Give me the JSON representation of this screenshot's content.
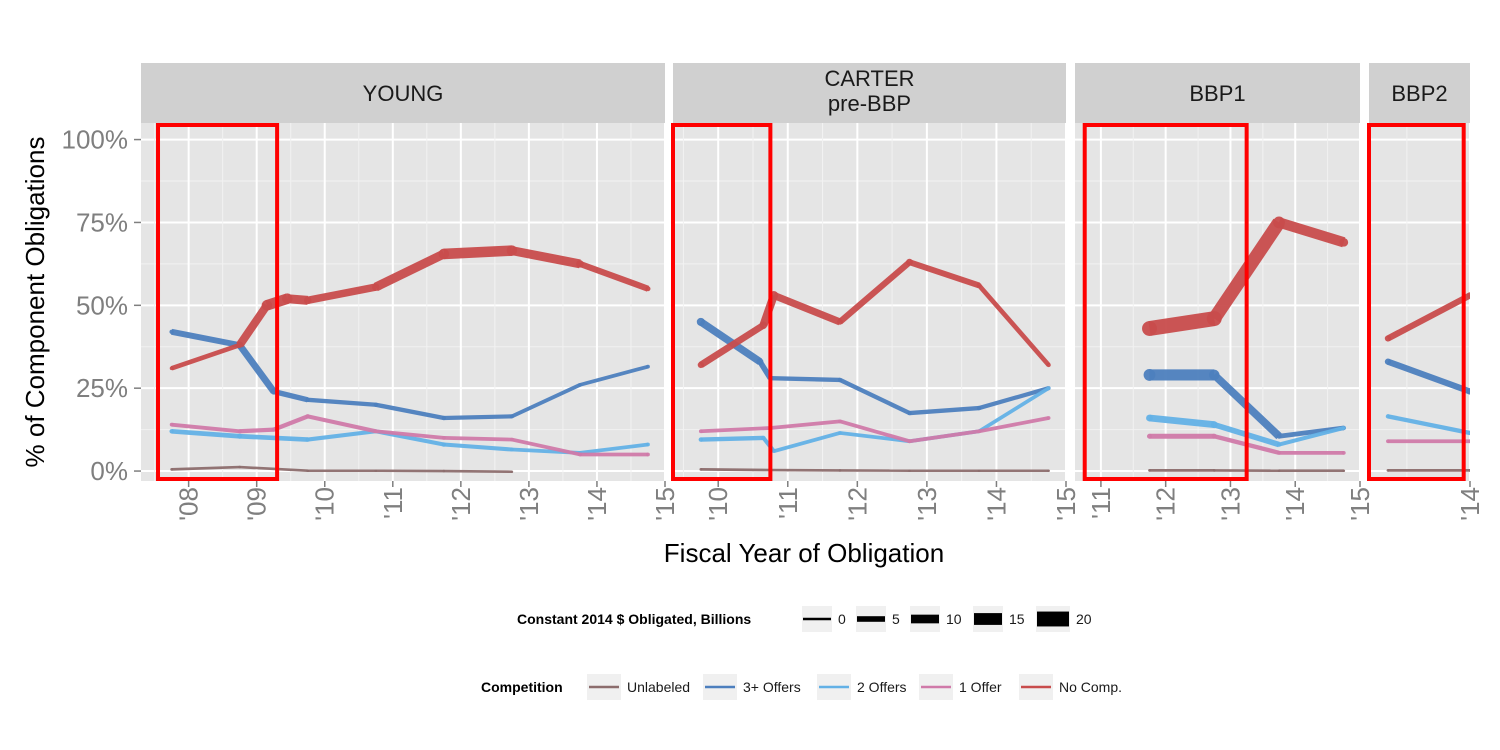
{
  "chart_data": {
    "type": "line",
    "xlabel": "Fiscal Year of Obligation",
    "ylabel": "% of Component Obligations",
    "ylim": [
      -0.03,
      1.05
    ],
    "y_ticks": [
      {
        "value": 0,
        "label": "0%"
      },
      {
        "value": 0.25,
        "label": "25%"
      },
      {
        "value": 0.5,
        "label": "50%"
      },
      {
        "value": 0.75,
        "label": "75%"
      },
      {
        "value": 1.0,
        "label": "100%"
      }
    ],
    "panels": [
      {
        "title_lines": [
          "YOUNG"
        ],
        "xlim": [
          2007.3,
          2015.0
        ],
        "x_ticks": [
          {
            "value": 2008,
            "label": "'08"
          },
          {
            "value": 2009,
            "label": "'09"
          },
          {
            "value": 2010,
            "label": "'10"
          },
          {
            "value": 2011,
            "label": "'11"
          },
          {
            "value": 2012,
            "label": "'12"
          },
          {
            "value": 2013,
            "label": "'13"
          },
          {
            "value": 2014,
            "label": "'14"
          },
          {
            "value": 2015,
            "label": "'15"
          }
        ],
        "highlight_x": [
          2007.55,
          2009.3
        ],
        "series": [
          {
            "name": "Unlabeled",
            "x": [
              2007.75,
              2008.75,
              2009.75,
              2010.75,
              2011.75,
              2012.75
            ],
            "y": [
              0.005,
              0.012,
              0.001,
              0.001,
              0.0,
              -0.002
            ],
            "w": [
              0.3,
              0.4,
              0.1,
              0.1,
              0.1,
              0.1
            ]
          },
          {
            "name": "3+ Offers",
            "x": [
              2007.75,
              2008.75,
              2009.25,
              2009.75,
              2010.75,
              2011.75,
              2012.75,
              2013.75,
              2014.75
            ],
            "y": [
              0.42,
              0.38,
              0.24,
              0.215,
              0.2,
              0.16,
              0.165,
              0.26,
              0.315
            ],
            "w": [
              3,
              8,
              6,
              3,
              3,
              3,
              2.5,
              2,
              2
            ]
          },
          {
            "name": "2 Offers",
            "x": [
              2007.75,
              2008.75,
              2009.75,
              2010.75,
              2011.75,
              2012.75,
              2013.75,
              2014.75
            ],
            "y": [
              0.12,
              0.105,
              0.095,
              0.12,
              0.08,
              0.065,
              0.055,
              0.08
            ],
            "w": [
              3,
              4,
              3,
              2,
              3,
              2,
              2,
              2
            ]
          },
          {
            "name": "1 Offer",
            "x": [
              2007.75,
              2008.75,
              2009.25,
              2009.75,
              2010.75,
              2011.75,
              2012.75,
              2013.75,
              2014.75
            ],
            "y": [
              0.14,
              0.12,
              0.125,
              0.165,
              0.12,
              0.1,
              0.095,
              0.05,
              0.05
            ],
            "w": [
              2,
              2.5,
              3,
              3,
              2,
              2,
              2,
              2,
              2
            ]
          },
          {
            "name": "No Comp.",
            "x": [
              2007.75,
              2008.75,
              2009.15,
              2009.45,
              2009.75,
              2010.75,
              2011.75,
              2012.75,
              2013.75,
              2014.75
            ],
            "y": [
              0.31,
              0.38,
              0.5,
              0.52,
              0.515,
              0.555,
              0.655,
              0.665,
              0.625,
              0.55
            ],
            "w": [
              2,
              5,
              13,
              13,
              8,
              8,
              13,
              13,
              8,
              4
            ]
          }
        ]
      },
      {
        "title_lines": [
          "CARTER",
          "pre-BBP"
        ],
        "xlim": [
          2009.35,
          2015.0
        ],
        "x_ticks": [
          {
            "value": 2010,
            "label": "'10"
          },
          {
            "value": 2011,
            "label": "'11"
          },
          {
            "value": 2012,
            "label": "'12"
          },
          {
            "value": 2013,
            "label": "'13"
          },
          {
            "value": 2014,
            "label": "'14"
          },
          {
            "value": 2015,
            "label": "'15"
          }
        ],
        "highlight_x": [
          2009.35,
          2010.75
        ],
        "series": [
          {
            "name": "Unlabeled",
            "x": [
              2009.75,
              2010.75,
              2011.75,
              2012.75,
              2013.75,
              2014.75
            ],
            "y": [
              0.005,
              0.003,
              0.002,
              0.001,
              0.001,
              0.001
            ],
            "w": [
              0.3,
              0.3,
              0.2,
              0.1,
              0.1,
              0.1
            ]
          },
          {
            "name": "3+ Offers",
            "x": [
              2009.75,
              2010.6,
              2010.75,
              2011.75,
              2012.75,
              2013.75,
              2014.75
            ],
            "y": [
              0.45,
              0.33,
              0.28,
              0.275,
              0.175,
              0.19,
              0.25
            ],
            "w": [
              9,
              7,
              3,
              3,
              3,
              3,
              2.5
            ]
          },
          {
            "name": "2 Offers",
            "x": [
              2009.75,
              2010.65,
              2010.8,
              2011.75,
              2012.75,
              2013.75,
              2014.75
            ],
            "y": [
              0.095,
              0.1,
              0.06,
              0.115,
              0.09,
              0.12,
              0.25
            ],
            "w": [
              3,
              3,
              2,
              2,
              2,
              2,
              2
            ]
          },
          {
            "name": "1 Offer",
            "x": [
              2009.75,
              2010.75,
              2011.75,
              2012.75,
              2013.75,
              2014.75
            ],
            "y": [
              0.12,
              0.13,
              0.15,
              0.09,
              0.12,
              0.16
            ],
            "w": [
              2,
              2,
              2,
              2,
              2,
              2
            ]
          },
          {
            "name": "No Comp.",
            "x": [
              2009.75,
              2010.65,
              2010.8,
              2011.75,
              2012.75,
              2013.75,
              2014.75
            ],
            "y": [
              0.32,
              0.44,
              0.53,
              0.45,
              0.63,
              0.56,
              0.32
            ],
            "w": [
              6,
              8,
              10,
              5,
              7,
              4,
              3
            ]
          }
        ]
      },
      {
        "title_lines": [
          "BBP1"
        ],
        "xlim": [
          2010.6,
          2015.0
        ],
        "x_ticks": [
          {
            "value": 2011,
            "label": "'11"
          },
          {
            "value": 2012,
            "label": "'12"
          },
          {
            "value": 2013,
            "label": "'13"
          },
          {
            "value": 2014,
            "label": "'14"
          },
          {
            "value": 2015,
            "label": "'15"
          }
        ],
        "highlight_x": [
          2010.75,
          2013.25
        ],
        "series": [
          {
            "name": "Unlabeled",
            "x": [
              2011.75,
              2012.75,
              2013.75,
              2014.75
            ],
            "y": [
              0.002,
              0.002,
              0.001,
              0.001
            ],
            "w": [
              0.3,
              0.3,
              0.2,
              0.1
            ]
          },
          {
            "name": "3+ Offers",
            "x": [
              2011.75,
              2012.75,
              2013.75,
              2014.75
            ],
            "y": [
              0.29,
              0.29,
              0.105,
              0.13
            ],
            "w": [
              15,
              13,
              4,
              3
            ]
          },
          {
            "name": "2 Offers",
            "x": [
              2011.75,
              2012.75,
              2013.75,
              2014.75
            ],
            "y": [
              0.16,
              0.14,
              0.08,
              0.13
            ],
            "w": [
              7,
              7,
              3,
              2
            ]
          },
          {
            "name": "1 Offer",
            "x": [
              2011.75,
              2012.75,
              2013.75,
              2014.75
            ],
            "y": [
              0.105,
              0.105,
              0.055,
              0.055
            ],
            "w": [
              4,
              4,
              2,
              2
            ]
          },
          {
            "name": "No Comp.",
            "x": [
              2011.75,
              2012.75,
              2013.75,
              2014.75
            ],
            "y": [
              0.43,
              0.46,
              0.75,
              0.69
            ],
            "w": [
              20,
              20,
              15,
              10
            ]
          }
        ]
      },
      {
        "title_lines": [
          "BBP2"
        ],
        "xlim": [
          2013.2,
          2014.0
        ],
        "x_ticks": [
          {
            "value": 2014,
            "label": "'14"
          }
        ],
        "highlight_x": [
          2013.2,
          2013.95
        ],
        "series": [
          {
            "name": "Unlabeled",
            "x": [
              2013.35,
              2014.0
            ],
            "y": [
              0.002,
              0.002
            ],
            "w": [
              0.3,
              0.3
            ]
          },
          {
            "name": "3+ Offers",
            "x": [
              2013.35,
              2014.0
            ],
            "y": [
              0.33,
              0.24
            ],
            "w": [
              6,
              6
            ]
          },
          {
            "name": "2 Offers",
            "x": [
              2013.35,
              2014.0
            ],
            "y": [
              0.165,
              0.115
            ],
            "w": [
              3,
              3
            ]
          },
          {
            "name": "1 Offer",
            "x": [
              2013.35,
              2014.0
            ],
            "y": [
              0.09,
              0.09
            ],
            "w": [
              2,
              2
            ]
          },
          {
            "name": "No Comp.",
            "x": [
              2013.35,
              2014.0
            ],
            "y": [
              0.4,
              0.53
            ],
            "w": [
              6,
              6
            ]
          }
        ]
      }
    ],
    "size_legend": {
      "title": "Constant 2014 $ Obligated, Billions",
      "items": [
        {
          "value": 0,
          "label": "0"
        },
        {
          "value": 5,
          "label": "5"
        },
        {
          "value": 10,
          "label": "10"
        },
        {
          "value": 15,
          "label": "15"
        },
        {
          "value": 20,
          "label": "20"
        }
      ]
    },
    "color_legend": {
      "title": "Competition",
      "items": [
        {
          "name": "Unlabeled",
          "label": "Unlabeled",
          "color": "#8c6d6d"
        },
        {
          "name": "3+ Offers",
          "label": "3+ Offers",
          "color": "#4d7fbe"
        },
        {
          "name": "2 Offers",
          "label": "2 Offers",
          "color": "#63b1e6"
        },
        {
          "name": "1 Offer",
          "label": "1 Offer",
          "color": "#d07aa9"
        },
        {
          "name": "No Comp.",
          "label": "No Comp.",
          "color": "#c84c4c"
        }
      ]
    },
    "highlight_color": "#ff0000",
    "grid": true
  }
}
